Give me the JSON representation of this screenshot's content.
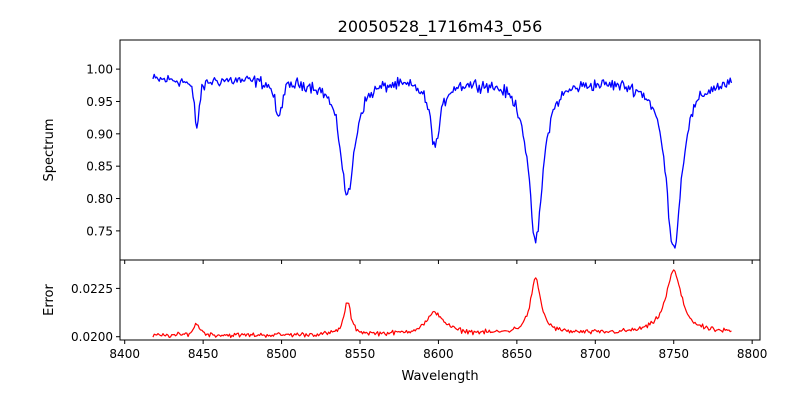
{
  "chart_data": [
    {
      "type": "line",
      "title": "20050528_1716m43_056",
      "ylabel": "Spectrum",
      "xlabel": "",
      "xlim": [
        8397,
        8805
      ],
      "ylim": [
        0.705,
        1.045
      ],
      "xticks": [
        8400,
        8450,
        8500,
        8550,
        8600,
        8650,
        8700,
        8750,
        8800
      ],
      "yticks": [
        0.75,
        0.8,
        0.85,
        0.9,
        0.95,
        1.0
      ],
      "ytick_labels": [
        "0.75",
        "0.80",
        "0.85",
        "0.90",
        "0.95",
        "1.00"
      ],
      "line_color": "#0000ff",
      "x_range": [
        8418,
        8787
      ],
      "baseline": 0.985,
      "noise_amplitude": 0.014,
      "absorption_lines": [
        {
          "center": 8446,
          "depth": 0.075,
          "width": 1.8
        },
        {
          "center": 8498,
          "depth": 0.06,
          "width": 2.5
        },
        {
          "center": 8542,
          "depth": 0.18,
          "width": 5.5
        },
        {
          "center": 8598,
          "depth": 0.1,
          "width": 4.0
        },
        {
          "center": 8662,
          "depth": 0.25,
          "width": 5.5
        },
        {
          "center": 8750,
          "depth": 0.26,
          "width": 6.0
        }
      ],
      "series": [
        {
          "values": []
        }
      ]
    },
    {
      "type": "line",
      "title": "",
      "ylabel": "Error",
      "xlabel": "Wavelength",
      "xlim": [
        8397,
        8805
      ],
      "ylim": [
        0.01983,
        0.02397
      ],
      "xticks": [
        8400,
        8450,
        8500,
        8550,
        8600,
        8650,
        8700,
        8750,
        8800
      ],
      "xtick_labels": [
        "8400",
        "8450",
        "8500",
        "8550",
        "8600",
        "8650",
        "8700",
        "8750",
        "8800"
      ],
      "yticks": [
        0.02,
        0.0225
      ],
      "ytick_labels": [
        "0.0200",
        "0.0225"
      ],
      "line_color": "#ff0000",
      "x_range": [
        8418,
        8787
      ],
      "baseline": 0.02005,
      "noise_amplitude": 0.00018,
      "error_peaks": [
        {
          "center": 8446,
          "height": 0.0006,
          "width": 2.5
        },
        {
          "center": 8542,
          "height": 0.0017,
          "width": 2.5
        },
        {
          "center": 8598,
          "height": 0.0011,
          "width": 7.0
        },
        {
          "center": 8662,
          "height": 0.0028,
          "width": 4.0
        },
        {
          "center": 8750,
          "height": 0.0032,
          "width": 6.0
        }
      ],
      "series": [
        {
          "values": []
        }
      ]
    }
  ]
}
